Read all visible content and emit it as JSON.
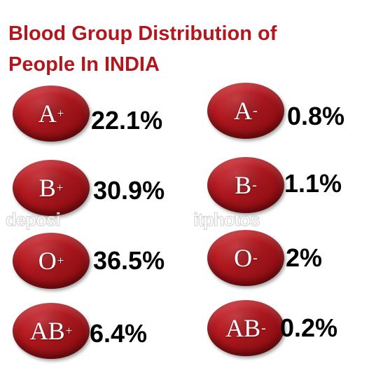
{
  "chart_data": {
    "type": "table",
    "title_lines": [
      "Blood Group Distribution of",
      "People In INDIA"
    ],
    "items": [
      {
        "group": "A",
        "sign": "+",
        "value": "22.1%"
      },
      {
        "group": "A",
        "sign": "-",
        "value": "0.8%"
      },
      {
        "group": "B",
        "sign": "+",
        "value": "30.9%"
      },
      {
        "group": "B",
        "sign": "-",
        "value": "1.1%"
      },
      {
        "group": "O",
        "sign": "+",
        "value": "36.5%"
      },
      {
        "group": "O",
        "sign": "-",
        "value": "2%"
      },
      {
        "group": "AB",
        "sign": "+",
        "value": "6.4%"
      },
      {
        "group": "AB",
        "sign": "-",
        "value": "0.2%"
      }
    ]
  },
  "watermark": {
    "left": "deposi",
    "right": "itphotos"
  },
  "colors": {
    "title": "#b2171d",
    "disc": "#b3191f",
    "value_text": "#000000"
  }
}
